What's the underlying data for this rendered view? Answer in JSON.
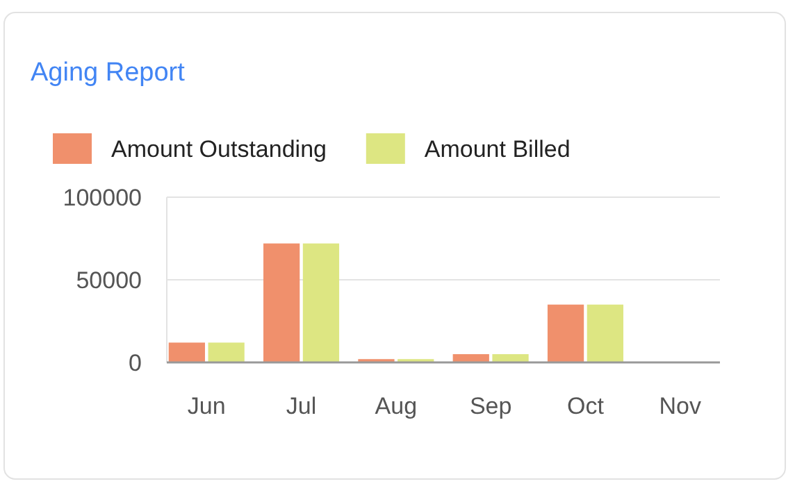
{
  "chart_data": {
    "type": "bar",
    "title": "Aging Report",
    "categories": [
      "Jun",
      "Jul",
      "Aug",
      "Sep",
      "Oct",
      "Nov"
    ],
    "series": [
      {
        "name": "Amount Outstanding",
        "color": "#f0906c",
        "values": [
          12000,
          72000,
          2000,
          5000,
          35000,
          0
        ]
      },
      {
        "name": "Amount Billed",
        "color": "#dde682",
        "values": [
          12000,
          72000,
          2000,
          5000,
          35000,
          0
        ]
      }
    ],
    "ylim": [
      0,
      100000
    ],
    "yticks": [
      0,
      50000,
      100000
    ],
    "grid": "y",
    "legend": "top left"
  }
}
